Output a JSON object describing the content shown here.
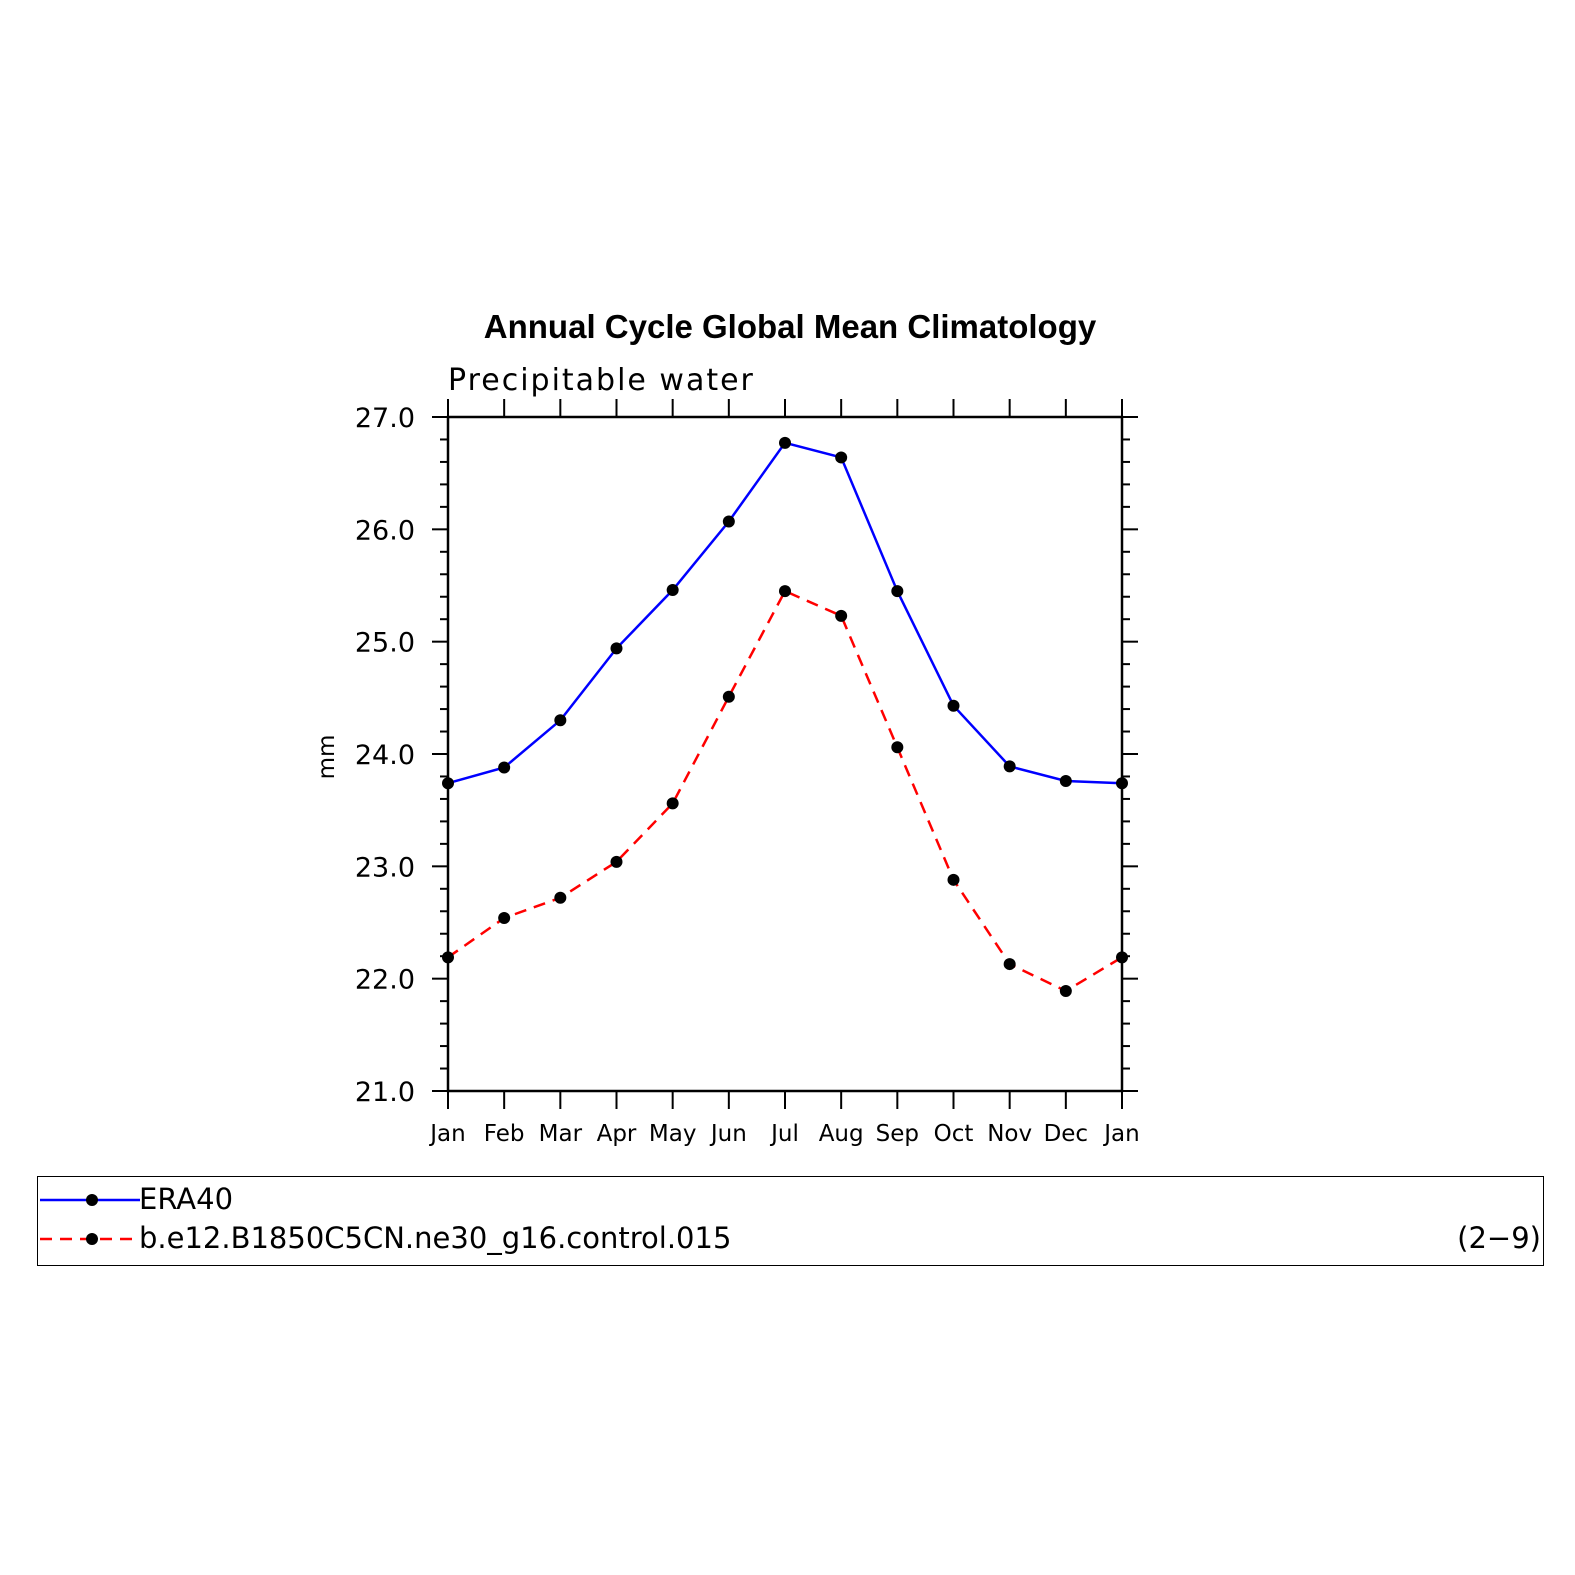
{
  "chart_data": {
    "type": "line",
    "title": "Annual Cycle Global Mean Climatology",
    "subtitle": "Precipitable water",
    "xlabel": "",
    "ylabel": "mm",
    "categories": [
      "Jan",
      "Feb",
      "Mar",
      "Apr",
      "May",
      "Jun",
      "Jul",
      "Aug",
      "Sep",
      "Oct",
      "Nov",
      "Dec",
      "Jan"
    ],
    "ylim": [
      21.0,
      27.0
    ],
    "yticks": [
      "21.0",
      "22.0",
      "23.0",
      "24.0",
      "25.0",
      "26.0",
      "27.0"
    ],
    "series": [
      {
        "name": "ERA40",
        "color": "#0000ff",
        "style": "solid",
        "marker": "filled-circle",
        "values": [
          23.74,
          23.88,
          24.3,
          24.94,
          25.46,
          26.07,
          26.77,
          26.64,
          25.45,
          24.43,
          23.89,
          23.76,
          23.74
        ]
      },
      {
        "name": "b.e12.B1850C5CN.ne30_g16.control.015",
        "color": "#ff0000",
        "style": "dashed",
        "marker": "filled-circle",
        "values": [
          22.19,
          22.54,
          22.72,
          23.04,
          23.56,
          24.51,
          25.45,
          25.23,
          24.06,
          22.88,
          22.13,
          21.89,
          22.19
        ]
      }
    ],
    "legend_position": "bottom",
    "legend_tag": "(2−9)"
  }
}
